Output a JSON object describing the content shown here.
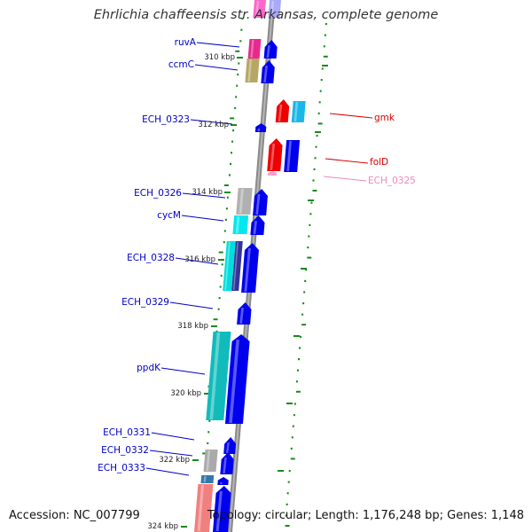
{
  "title": "Ehrlichia chaffeensis str. Arkansas, complete genome",
  "footer": {
    "accession": "Accession: NC_007799",
    "topology": "Topology: circular; Length: 1,176,248 bp; Genes: 1,148"
  },
  "colors": {
    "backbone": "#8c8c8c",
    "ticks": "#1a8a1a",
    "label_line_left": "#0000cc",
    "label_line_right_gmk": "#dd0000",
    "label_line_right_ECH_0325": "#ee88bb"
  },
  "kbp_marks": [
    {
      "label": "310 kbp"
    },
    {
      "label": "312 kbp"
    },
    {
      "label": "314 kbp"
    },
    {
      "label": "316 kbp"
    },
    {
      "label": "318 kbp"
    },
    {
      "label": "320 kbp"
    },
    {
      "label": "322 kbp"
    },
    {
      "label": "324 kbp"
    }
  ],
  "gene_labels": {
    "ruvA": "ruvA",
    "ccmC": "ccmC",
    "ECH_0323": "ECH_0323",
    "ECH_0326": "ECH_0326",
    "cycM": "cycM",
    "ECH_0328": "ECH_0328",
    "ECH_0329": "ECH_0329",
    "ppdK": "ppdK",
    "ECH_0331": "ECH_0331",
    "ECH_0332": "ECH_0332",
    "ECH_0333": "ECH_0333",
    "gmk": "gmk",
    "folD": "folD",
    "ECH_0325": "ECH_0325"
  }
}
